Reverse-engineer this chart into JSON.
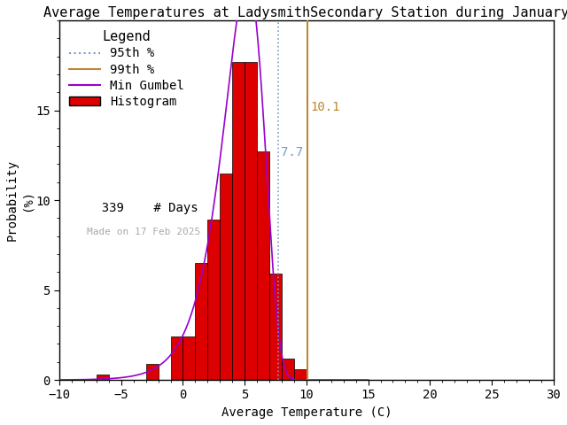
{
  "title": "Average Temperatures at LadysmithSecondary Station during January",
  "xlabel": "Average Temperature (C)",
  "ylabel_line1": "Probability",
  "ylabel_line2": "(%)",
  "bar_color": "#dd0000",
  "bar_edge_color": "#000000",
  "gumbel_color": "#9900cc",
  "p95_color": "#7799cc",
  "p99_color": "#bb8833",
  "p95_value": 7.7,
  "p99_value": 10.1,
  "n_days": 339,
  "made_on": "Made on 17 Feb 2025",
  "xlim": [
    -10,
    30
  ],
  "ylim": [
    0,
    20
  ],
  "xticks": [
    -10,
    -5,
    0,
    5,
    10,
    15,
    20,
    25,
    30
  ],
  "yticks": [
    0,
    5,
    10,
    15
  ],
  "bin_edges": [
    -9,
    -8,
    -7,
    -6,
    -5,
    -4,
    -3,
    -2,
    -1,
    0,
    1,
    2,
    3,
    4,
    5,
    6,
    7,
    8,
    9,
    10,
    11,
    12
  ],
  "bin_heights": [
    0.0,
    0.0,
    0.3,
    0.0,
    0.0,
    0.0,
    0.9,
    0.0,
    2.4,
    2.4,
    6.5,
    8.9,
    11.5,
    17.7,
    17.7,
    12.7,
    5.9,
    1.2,
    0.6,
    0.0,
    0.0
  ],
  "gumbel_mu": 5.2,
  "gumbel_beta": 1.65,
  "background_color": "#ffffff",
  "title_fontsize": 11,
  "axis_fontsize": 10,
  "tick_fontsize": 10,
  "legend_fontsize": 10,
  "legend_title_fontsize": 11
}
